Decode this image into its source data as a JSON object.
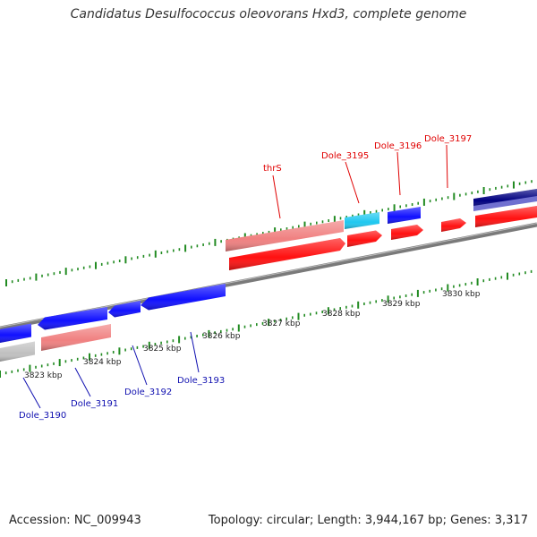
{
  "title": "Candidatus Desulfococcus oleovorans Hxd3, complete genome",
  "accession": "Accession: NC_009943",
  "summary": "Topology: circular; Length: 3,944,167 bp; Genes: 3,317",
  "colors": {
    "backbone": "#808080",
    "tick": "#228b22",
    "gene_red": "#ff1010",
    "gene_pink": "#f08080",
    "gene_blue": "#1010ff",
    "gene_cyan": "#1ec8f0",
    "gene_navy": "#000080",
    "gene_lavender": "#7070d0",
    "gene_gray": "#c0c0c0",
    "label_top": "#e00000",
    "label_bottom": "#1010b0"
  },
  "scale": {
    "labels": [
      "3823 kbp",
      "3824 kbp",
      "3825 kbp",
      "3826 kbp",
      "3827 kbp",
      "3828 kbp",
      "3829 kbp",
      "3830 kbp"
    ]
  },
  "gene_labels_top": [
    "thrS",
    "Dole_3195",
    "Dole_3196",
    "Dole_3197"
  ],
  "gene_labels_bottom": [
    "Dole_3190",
    "Dole_3191",
    "Dole_3192",
    "Dole_3193"
  ]
}
